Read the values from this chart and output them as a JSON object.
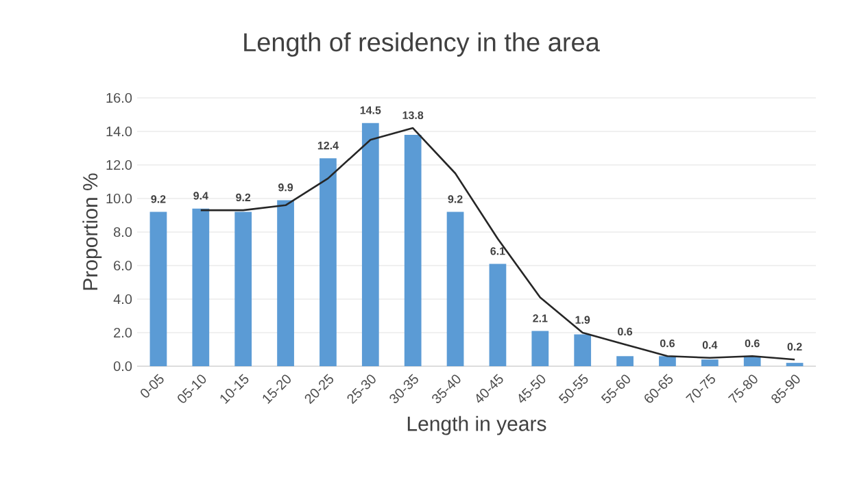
{
  "chart_data": {
    "type": "bar",
    "title": "Length of residency in the area",
    "xlabel": "Length in years",
    "ylabel": "Proportion %",
    "categories": [
      "0-05",
      "05-10",
      "10-15",
      "15-20",
      "20-25",
      "25-30",
      "30-35",
      "35-40",
      "40-45",
      "45-50",
      "50-55",
      "55-60",
      "60-65",
      "70-75",
      "75-80",
      "85-90"
    ],
    "series": [
      {
        "color": "#5b9bd5",
        "values": [
          9.2,
          9.4,
          9.2,
          9.9,
          12.4,
          14.5,
          13.8,
          9.2,
          6.1,
          2.1,
          1.9,
          0.6,
          0.6,
          0.4,
          0.6,
          0.2
        ],
        "value_labels": [
          "9.2",
          "9.4",
          "9.2",
          "9.9",
          "12.4",
          "14.5",
          "13.8",
          "9.2",
          "6.1",
          "2.1",
          "1.9",
          "0.6",
          "0.6",
          "0.4",
          "0.6",
          "0.2"
        ]
      },
      {
        "type": "line",
        "color": "#262626",
        "values": [
          null,
          9.3,
          9.3,
          9.6,
          11.2,
          13.5,
          14.2,
          11.5,
          7.6,
          4.1,
          2.0,
          1.3,
          0.6,
          0.5,
          0.6,
          0.4
        ]
      }
    ],
    "grid": "y",
    "ylim": [
      0,
      16
    ],
    "yticks": [
      {
        "value": 0,
        "label": "0.0"
      },
      {
        "value": 2,
        "label": "2.0"
      },
      {
        "value": 4,
        "label": "4.0"
      },
      {
        "value": 6,
        "label": "6.0"
      },
      {
        "value": 8,
        "label": "8.0"
      },
      {
        "value": 10,
        "label": "10.0"
      },
      {
        "value": 12,
        "label": "12.0"
      },
      {
        "value": 14,
        "label": "14.0"
      },
      {
        "value": 16,
        "label": "16.0"
      }
    ]
  }
}
